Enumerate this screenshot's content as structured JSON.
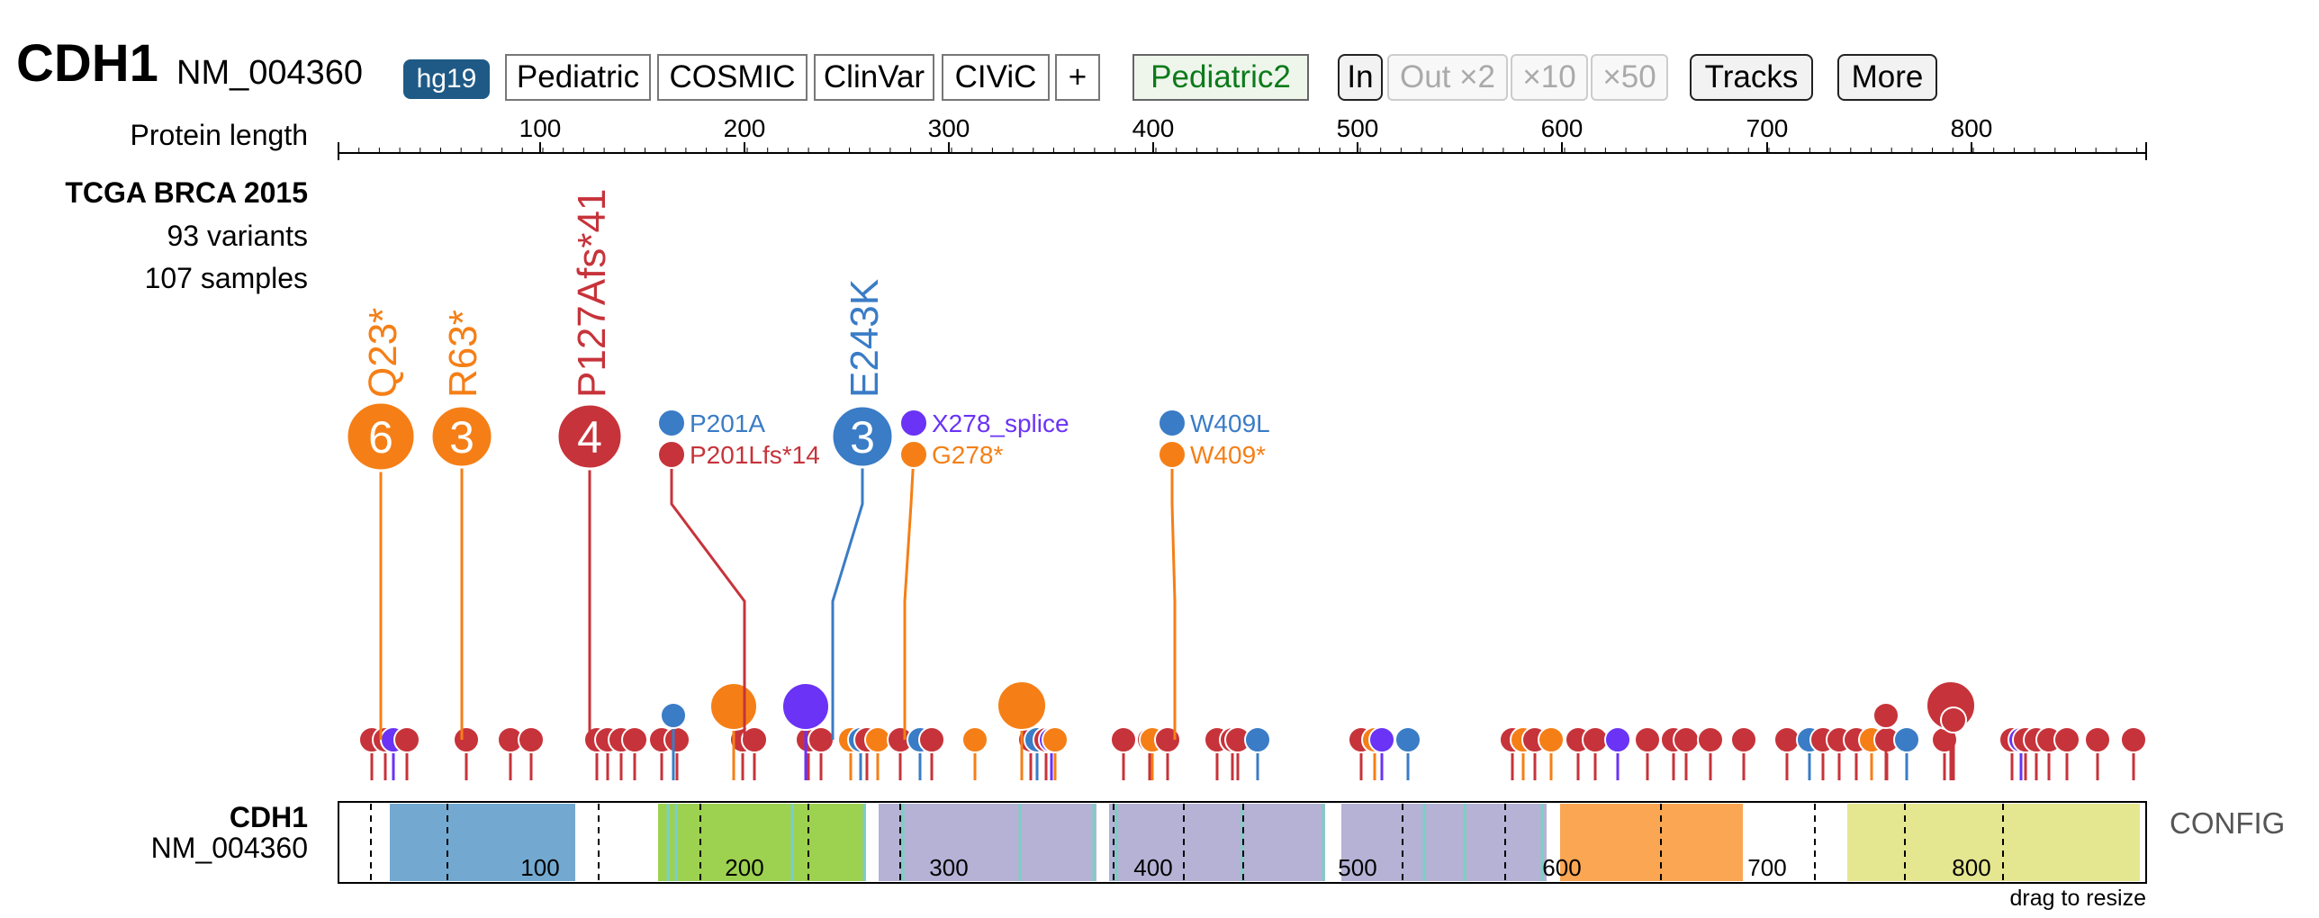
{
  "header": {
    "gene": "CDH1",
    "transcript": "NM_004360",
    "genome_build": "hg19",
    "sources": [
      "Pediatric",
      "COSMIC",
      "ClinVar",
      "CIViC"
    ],
    "add_label": "+",
    "active_source": "Pediatric2",
    "zoom_in": "In",
    "zoom_out": "Out ×2",
    "zoom_10": "×10",
    "zoom_50": "×50",
    "tracks_label": "Tracks",
    "more_label": "More"
  },
  "ruler": {
    "label": "Protein length",
    "ticks": [
      "100",
      "200",
      "300",
      "400",
      "500",
      "600",
      "700",
      "800"
    ]
  },
  "track": {
    "title": "TCGA BRCA 2015",
    "variants": "93 variants",
    "samples": "107 samples"
  },
  "colors": {
    "truncating": "#f57f16",
    "missense": "#3a7cc6",
    "frameshift": "#c7333a",
    "splice": "#6a33f5"
  },
  "big_labels": [
    {
      "label": "Q23*",
      "count": "6",
      "type": "truncating"
    },
    {
      "label": "R63*",
      "count": "3",
      "type": "truncating"
    },
    {
      "label": "P127Afs*41",
      "count": "4",
      "type": "frameshift"
    },
    {
      "label": "E243K",
      "count": "3",
      "type": "missense"
    }
  ],
  "small_labels": [
    {
      "label": "P201A",
      "type": "missense"
    },
    {
      "label": "P201Lfs*14",
      "type": "frameshift"
    },
    {
      "label": "X278_splice",
      "type": "splice"
    },
    {
      "label": "G278*",
      "type": "truncating"
    },
    {
      "label": "W409L",
      "type": "missense"
    },
    {
      "label": "W409*",
      "type": "truncating"
    }
  ],
  "protein_track": {
    "gene": "CDH1",
    "transcript": "NM_004360",
    "ticks": [
      "100",
      "200",
      "300",
      "400",
      "500",
      "600",
      "700",
      "800"
    ],
    "domain_colors": [
      "#73a9d0",
      "#9dd150",
      "#b5b2d6",
      "#fba652",
      "#e5e690"
    ],
    "config_label": "CONFIG",
    "resize_hint": "drag to resize"
  }
}
